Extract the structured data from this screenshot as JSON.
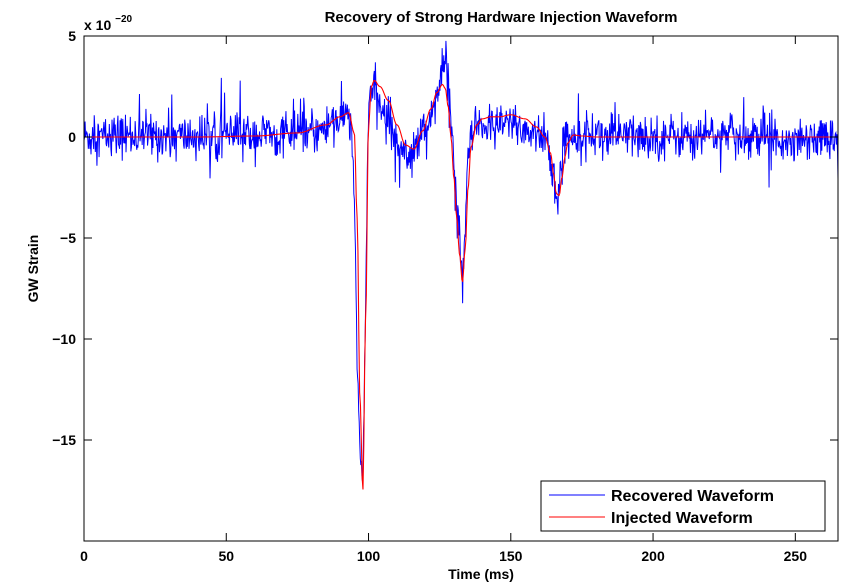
{
  "chart_data": {
    "type": "line",
    "title": "Recovery of Strong Hardware Injection Waveform",
    "xlabel": "Time (ms)",
    "ylabel": "GW Strain",
    "y_multiplier": {
      "base": "x 10",
      "exponent": "−20"
    },
    "xlim": [
      0,
      265
    ],
    "ylim": [
      -20,
      5
    ],
    "x_ticks": [
      0,
      50,
      100,
      150,
      200,
      250
    ],
    "x_tick_labels": [
      "0",
      "50",
      "100",
      "150",
      "200",
      "250"
    ],
    "y_ticks": [
      5,
      0,
      -5,
      -10,
      -15
    ],
    "y_tick_labels": [
      "5",
      "0",
      "−5",
      "−10",
      "−15"
    ],
    "grid": false,
    "legend_position": "bottom-right",
    "series": [
      {
        "name": "Recovered Waveform",
        "color": "#0000ff",
        "style": "noisy",
        "x": [
          0,
          20,
          40,
          60,
          80,
          88,
          92,
          94,
          95,
          96,
          97,
          98,
          99,
          100,
          101,
          103,
          106,
          110,
          115,
          120,
          124,
          126,
          127,
          128,
          129,
          130,
          131,
          132,
          133,
          134,
          135,
          137,
          140,
          145,
          150,
          155,
          160,
          163,
          165,
          166,
          167,
          168,
          170,
          175,
          185,
          200,
          220,
          240,
          265
        ],
        "y": [
          0,
          0.1,
          0,
          0.1,
          0.2,
          0.6,
          1.2,
          0.6,
          -3.5,
          -10.5,
          -16.5,
          -17.0,
          -8.0,
          1.8,
          2.5,
          1.8,
          1.0,
          -0.2,
          -0.8,
          0.4,
          2.0,
          3.0,
          4.0,
          3.4,
          1.2,
          -1.2,
          -3.5,
          -5.0,
          -7.5,
          -4.5,
          -1.0,
          0.4,
          0.6,
          0.4,
          0.8,
          0.3,
          0.2,
          -0.4,
          -2.0,
          -3.2,
          -2.5,
          -0.8,
          0.1,
          0.2,
          0.1,
          0.0,
          0.1,
          0.0,
          0.0
        ]
      },
      {
        "name": "Injected Waveform",
        "color": "#ff0000",
        "style": "smooth",
        "x": [
          0,
          20,
          40,
          60,
          75,
          85,
          90,
          93,
          95,
          96,
          97,
          98,
          99,
          100,
          101,
          102,
          104,
          107,
          110,
          113,
          116,
          119,
          122,
          124,
          126,
          127,
          128,
          129,
          130,
          131,
          132,
          133,
          134,
          135,
          136,
          138,
          140,
          143,
          146,
          150,
          155,
          159,
          162,
          164,
          165,
          166,
          167,
          168,
          169,
          170,
          172,
          175,
          180,
          190,
          210,
          240,
          265
        ],
        "y": [
          0,
          0,
          0,
          0.05,
          0.2,
          0.6,
          1.0,
          1.2,
          0.2,
          -4.0,
          -13.0,
          -17.5,
          -9.0,
          0.5,
          2.5,
          2.8,
          2.5,
          1.8,
          0.6,
          -0.4,
          -0.6,
          0.3,
          1.4,
          2.2,
          2.6,
          2.4,
          1.5,
          0.0,
          -2.0,
          -4.0,
          -5.8,
          -7.2,
          -5.5,
          -2.5,
          -0.5,
          0.6,
          0.9,
          1.0,
          1.0,
          1.1,
          0.9,
          0.5,
          0.0,
          -0.8,
          -1.8,
          -2.8,
          -2.9,
          -2.0,
          -1.0,
          -0.3,
          0.1,
          0.05,
          0,
          0,
          0,
          0,
          0
        ]
      }
    ]
  }
}
